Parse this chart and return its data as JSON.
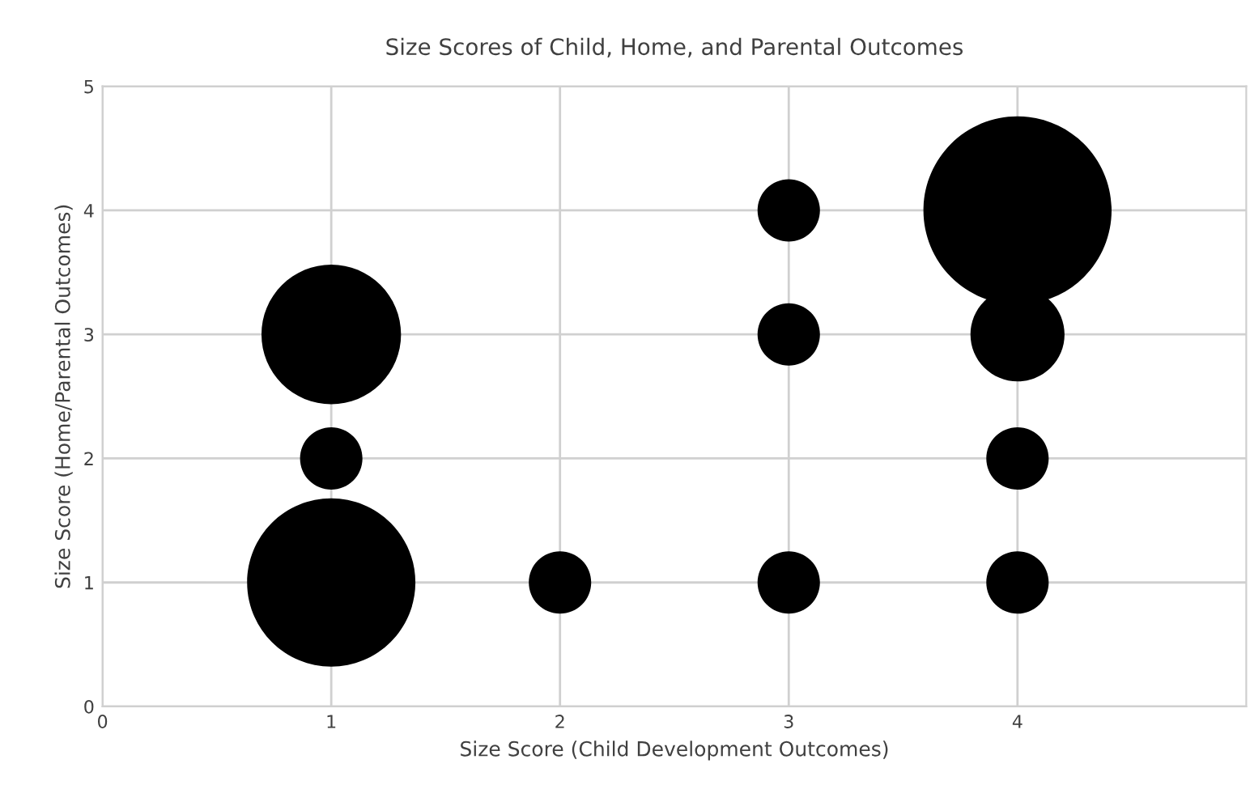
{
  "chart_data": {
    "type": "bubble",
    "title": "Size Scores of Child, Home, and Parental Outcomes",
    "xlabel": "Size Score (Child Development Outcomes)",
    "ylabel": "Size Score (Home/Parental Outcomes)",
    "series": [
      {
        "color": "#000000",
        "x": [
          1,
          1,
          1,
          2,
          3,
          3,
          3,
          4,
          4,
          4,
          4
        ],
        "values": [
          1,
          2,
          3,
          1,
          1,
          3,
          4,
          1,
          2,
          3,
          4
        ],
        "sizes": [
          0.8,
          0.11,
          0.55,
          0.11,
          0.11,
          0.11,
          0.11,
          0.11,
          0.11,
          0.25,
          1
        ]
      }
    ],
    "xlim": [
      0,
      5
    ],
    "xticks": [
      0,
      1,
      2,
      3,
      4
    ],
    "ylim": [
      0,
      5
    ],
    "yticks": [
      0,
      1,
      2,
      3,
      4,
      5
    ],
    "grid": true,
    "legend": false
  }
}
